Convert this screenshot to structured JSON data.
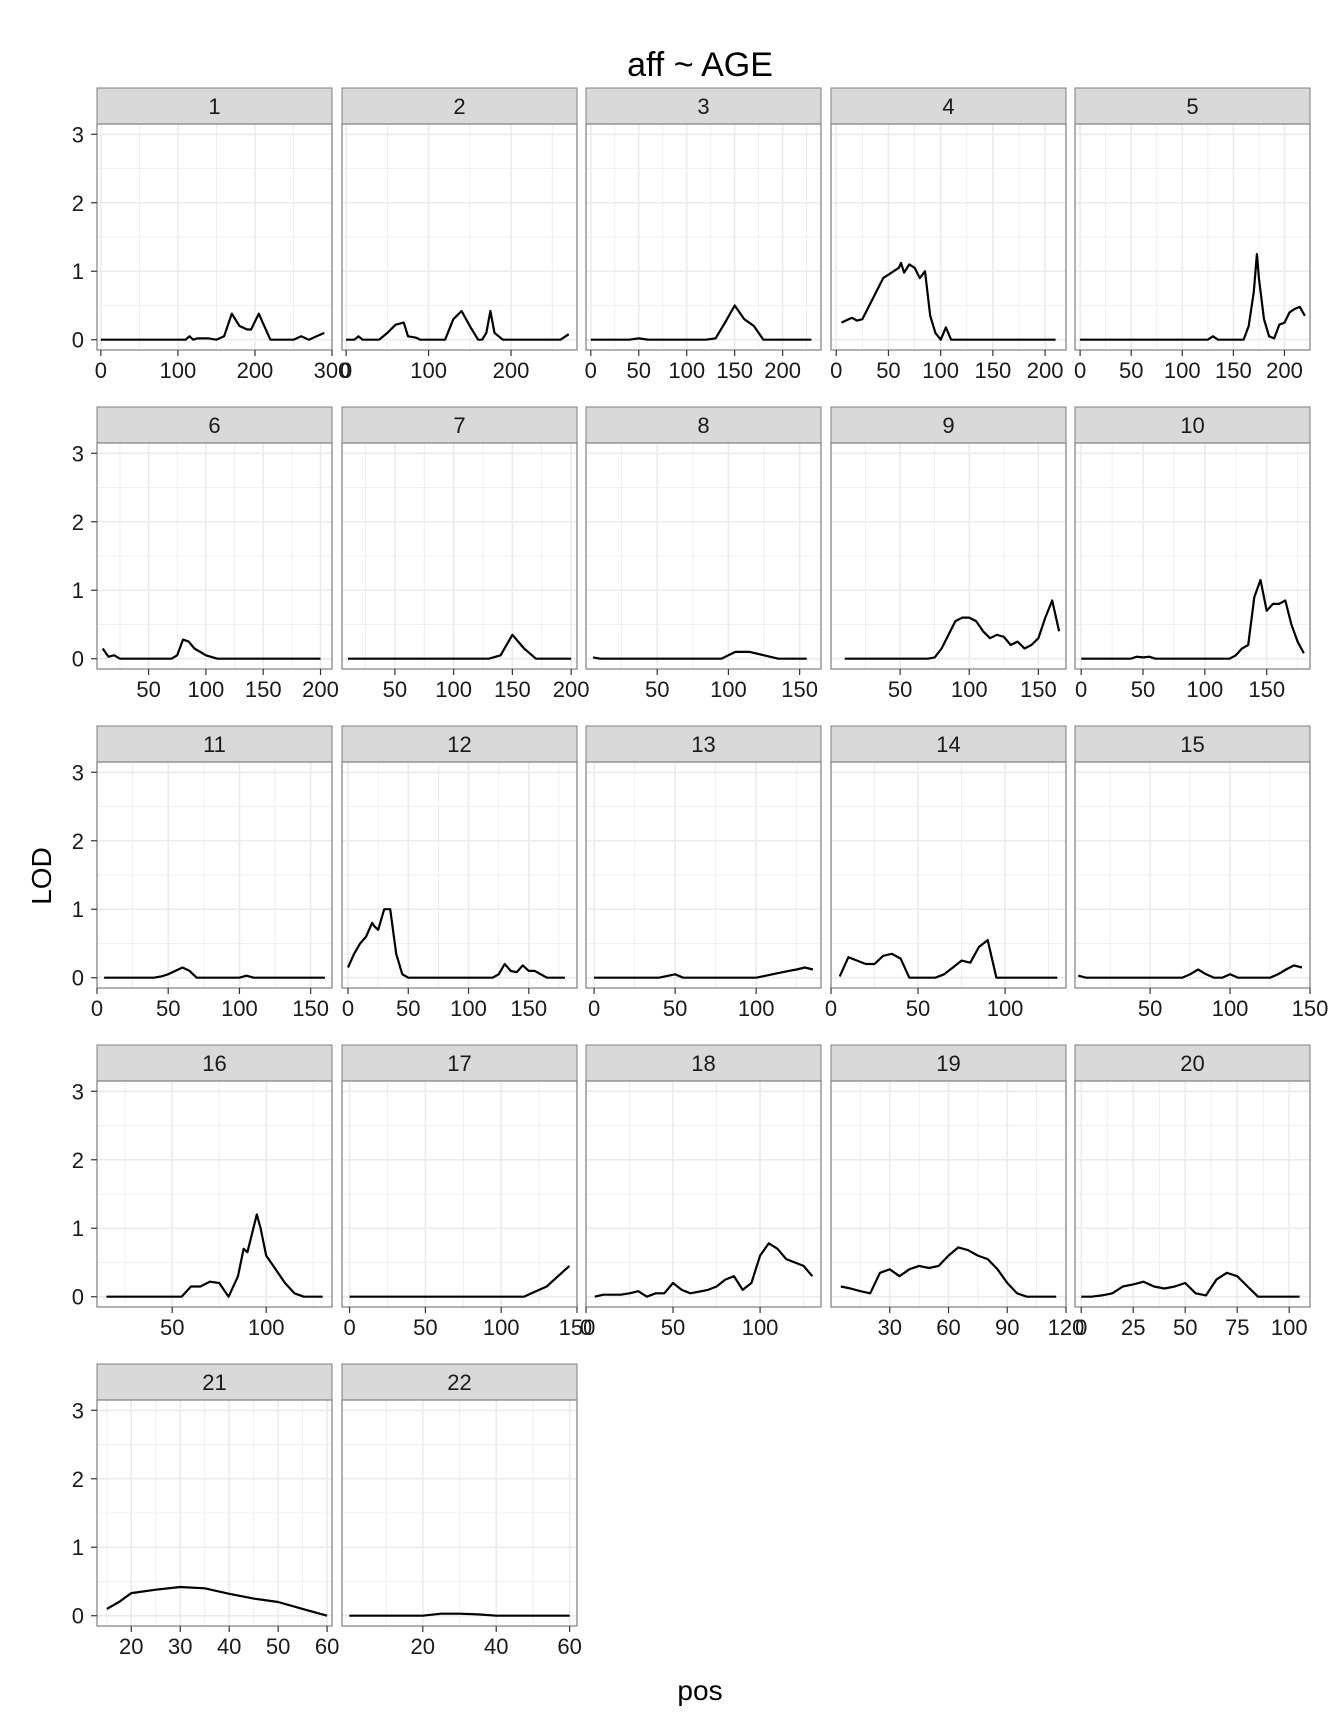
{
  "chart_data": {
    "type": "line",
    "title": "aff ~ AGE",
    "xlabel": "pos",
    "ylabel": "LOD",
    "ylim": [
      -0.15,
      3.15
    ],
    "yticks": [
      0,
      1,
      2,
      3
    ],
    "grid": true,
    "facet_layout": "5 columns, 5 rows, shared y axis, free x axis",
    "colors": {
      "line": "#000000",
      "panel_bg": "#ffffff",
      "grid": "#ebebeb",
      "strip_bg": "#d9d9d9",
      "border": "#7f7f7f"
    },
    "panels": [
      {
        "label": "1",
        "xlim": [
          -5,
          300
        ],
        "xticks": [
          0,
          100,
          200,
          300
        ],
        "x": [
          0,
          110,
          115,
          120,
          125,
          140,
          150,
          160,
          170,
          180,
          190,
          195,
          205,
          210,
          220,
          230,
          250,
          260,
          270,
          280,
          290
        ],
        "y": [
          0,
          0,
          0.05,
          0,
          0.02,
          0.02,
          0,
          0.05,
          0.38,
          0.2,
          0.15,
          0.15,
          0.38,
          0.25,
          0,
          0,
          0,
          0.05,
          0,
          0.05,
          0.1
        ]
      },
      {
        "label": "2",
        "xlim": [
          -5,
          280
        ],
        "xticks": [
          0,
          100,
          200
        ],
        "x": [
          0,
          10,
          15,
          20,
          30,
          40,
          50,
          60,
          70,
          75,
          85,
          90,
          110,
          120,
          130,
          140,
          150,
          160,
          165,
          170,
          175,
          180,
          190,
          200,
          260,
          270
        ],
        "y": [
          0,
          0,
          0.05,
          0,
          0,
          0,
          0.1,
          0.22,
          0.25,
          0.05,
          0.03,
          0,
          0,
          0,
          0.3,
          0.42,
          0.2,
          0,
          0,
          0.1,
          0.42,
          0.1,
          0,
          0,
          0,
          0.08
        ]
      },
      {
        "label": "3",
        "xlim": [
          -5,
          240
        ],
        "xticks": [
          0,
          50,
          100,
          150,
          200
        ],
        "x": [
          0,
          40,
          50,
          60,
          120,
          130,
          140,
          150,
          160,
          170,
          180,
          230
        ],
        "y": [
          0,
          0,
          0.02,
          0,
          0,
          0.02,
          0.25,
          0.5,
          0.3,
          0.2,
          0,
          0
        ]
      },
      {
        "label": "4",
        "xlim": [
          -5,
          220
        ],
        "xticks": [
          0,
          50,
          100,
          150,
          200
        ],
        "x": [
          5,
          15,
          20,
          25,
          35,
          45,
          50,
          55,
          60,
          62,
          65,
          70,
          75,
          80,
          85,
          90,
          95,
          100,
          105,
          110,
          120,
          210
        ],
        "y": [
          0.25,
          0.32,
          0.28,
          0.3,
          0.6,
          0.9,
          0.95,
          1.0,
          1.05,
          1.12,
          0.98,
          1.1,
          1.05,
          0.9,
          1.0,
          0.35,
          0.1,
          0,
          0.18,
          0,
          0,
          0
        ]
      },
      {
        "label": "5",
        "xlim": [
          -5,
          225
        ],
        "xticks": [
          0,
          50,
          100,
          150,
          200
        ],
        "x": [
          0,
          125,
          130,
          135,
          160,
          165,
          170,
          173,
          175,
          180,
          185,
          190,
          195,
          200,
          205,
          210,
          215,
          220
        ],
        "y": [
          0,
          0,
          0.05,
          0,
          0,
          0.2,
          0.7,
          1.25,
          0.9,
          0.3,
          0.05,
          0.02,
          0.22,
          0.25,
          0.4,
          0.45,
          0.48,
          0.35
        ]
      },
      {
        "label": "6",
        "xlim": [
          5,
          210
        ],
        "xticks": [
          50,
          100,
          150,
          200
        ],
        "x": [
          10,
          15,
          20,
          25,
          30,
          60,
          70,
          75,
          80,
          85,
          90,
          100,
          110,
          120,
          200
        ],
        "y": [
          0.15,
          0.03,
          0.05,
          0,
          0,
          0,
          0,
          0.05,
          0.28,
          0.25,
          0.15,
          0.05,
          0,
          0,
          0
        ]
      },
      {
        "label": "7",
        "xlim": [
          5,
          205
        ],
        "xticks": [
          50,
          100,
          150,
          200
        ],
        "x": [
          10,
          130,
          140,
          150,
          160,
          170,
          200
        ],
        "y": [
          0,
          0,
          0.05,
          0.35,
          0.15,
          0,
          0
        ]
      },
      {
        "label": "8",
        "xlim": [
          0,
          165
        ],
        "xticks": [
          50,
          100,
          150
        ],
        "x": [
          5,
          10,
          95,
          100,
          105,
          115,
          125,
          135,
          145,
          155
        ],
        "y": [
          0.02,
          0,
          0,
          0.05,
          0.1,
          0.1,
          0.05,
          0,
          0,
          0
        ]
      },
      {
        "label": "9",
        "xlim": [
          0,
          170
        ],
        "xticks": [
          50,
          100,
          150
        ],
        "x": [
          10,
          70,
          75,
          80,
          85,
          90,
          95,
          100,
          105,
          110,
          115,
          120,
          125,
          130,
          135,
          140,
          145,
          150,
          155,
          160,
          165
        ],
        "y": [
          0,
          0,
          0.02,
          0.15,
          0.35,
          0.55,
          0.6,
          0.6,
          0.55,
          0.4,
          0.3,
          0.35,
          0.32,
          0.2,
          0.25,
          0.15,
          0.2,
          0.3,
          0.6,
          0.85,
          0.4
        ]
      },
      {
        "label": "10",
        "xlim": [
          -5,
          185
        ],
        "xticks": [
          0,
          50,
          100,
          150
        ],
        "x": [
          0,
          40,
          45,
          50,
          55,
          60,
          65,
          120,
          125,
          130,
          135,
          140,
          145,
          150,
          155,
          160,
          165,
          170,
          175,
          180
        ],
        "y": [
          0,
          0,
          0.03,
          0.02,
          0.03,
          0,
          0,
          0,
          0.05,
          0.15,
          0.2,
          0.9,
          1.15,
          0.7,
          0.8,
          0.8,
          0.85,
          0.5,
          0.25,
          0.08
        ]
      },
      {
        "label": "11",
        "xlim": [
          0,
          165
        ],
        "xticks": [
          0,
          50,
          100,
          150
        ],
        "x": [
          5,
          40,
          45,
          50,
          55,
          60,
          65,
          70,
          75,
          100,
          105,
          110,
          115,
          160
        ],
        "y": [
          0,
          0,
          0.02,
          0.05,
          0.1,
          0.15,
          0.1,
          0,
          0,
          0,
          0.03,
          0,
          0,
          0
        ]
      },
      {
        "label": "12",
        "xlim": [
          -5,
          190
        ],
        "xticks": [
          0,
          50,
          100,
          150
        ],
        "x": [
          0,
          5,
          10,
          15,
          20,
          22,
          25,
          30,
          35,
          40,
          45,
          50,
          120,
          125,
          130,
          135,
          140,
          145,
          150,
          155,
          160,
          165,
          170,
          180
        ],
        "y": [
          0.15,
          0.35,
          0.5,
          0.6,
          0.8,
          0.75,
          0.7,
          1.0,
          1.0,
          0.35,
          0.05,
          0,
          0,
          0.05,
          0.2,
          0.1,
          0.08,
          0.18,
          0.1,
          0.1,
          0.05,
          0,
          0,
          0
        ]
      },
      {
        "label": "13",
        "xlim": [
          -5,
          140
        ],
        "xticks": [
          0,
          50,
          100
        ],
        "x": [
          0,
          40,
          50,
          55,
          100,
          110,
          120,
          125,
          130,
          135
        ],
        "y": [
          0,
          0,
          0.05,
          0,
          0,
          0.05,
          0.1,
          0.12,
          0.15,
          0.12
        ]
      },
      {
        "label": "14",
        "xlim": [
          0,
          135
        ],
        "xticks": [
          0,
          50,
          100
        ],
        "x": [
          5,
          10,
          15,
          20,
          25,
          30,
          35,
          40,
          45,
          60,
          65,
          70,
          75,
          80,
          85,
          90,
          95,
          100,
          130
        ],
        "y": [
          0.02,
          0.3,
          0.25,
          0.2,
          0.2,
          0.32,
          0.35,
          0.28,
          0,
          0,
          0.05,
          0.15,
          0.25,
          0.22,
          0.45,
          0.55,
          0,
          0,
          0
        ]
      },
      {
        "label": "15",
        "xlim": [
          3,
          150
        ],
        "xticks": [
          50,
          100,
          150
        ],
        "x": [
          5,
          10,
          70,
          75,
          80,
          85,
          90,
          95,
          100,
          105,
          110,
          125,
          130,
          135,
          140,
          145
        ],
        "y": [
          0.03,
          0,
          0,
          0.05,
          0.12,
          0.05,
          0,
          0,
          0.05,
          0,
          0,
          0,
          0.05,
          0.12,
          0.18,
          0.15
        ]
      },
      {
        "label": "16",
        "xlim": [
          10,
          135
        ],
        "xticks": [
          50,
          100
        ],
        "x": [
          15,
          55,
          60,
          65,
          70,
          75,
          80,
          85,
          88,
          90,
          95,
          97,
          100,
          105,
          110,
          115,
          120,
          130
        ],
        "y": [
          0,
          0,
          0.15,
          0.15,
          0.22,
          0.2,
          0,
          0.3,
          0.7,
          0.65,
          1.2,
          1.0,
          0.6,
          0.4,
          0.2,
          0.05,
          0,
          0
        ]
      },
      {
        "label": "17",
        "xlim": [
          -5,
          150
        ],
        "xticks": [
          0,
          50,
          100,
          150
        ],
        "x": [
          0,
          115,
          120,
          130,
          135,
          140,
          145
        ],
        "y": [
          0,
          0,
          0.05,
          0.15,
          0.25,
          0.35,
          0.45
        ]
      },
      {
        "label": "18",
        "xlim": [
          0,
          135
        ],
        "xticks": [
          0,
          50,
          100
        ],
        "x": [
          5,
          10,
          20,
          25,
          30,
          35,
          40,
          45,
          50,
          55,
          60,
          70,
          75,
          80,
          85,
          90,
          95,
          100,
          105,
          110,
          115,
          120,
          125,
          130
        ],
        "y": [
          0,
          0.03,
          0.03,
          0.05,
          0.08,
          0,
          0.05,
          0.05,
          0.2,
          0.1,
          0.05,
          0.1,
          0.15,
          0.25,
          0.3,
          0.1,
          0.2,
          0.6,
          0.78,
          0.7,
          0.55,
          0.5,
          0.45,
          0.3
        ]
      },
      {
        "label": "19",
        "xlim": [
          0,
          120
        ],
        "xticks": [
          30,
          60,
          90,
          120
        ],
        "x": [
          5,
          10,
          15,
          20,
          25,
          30,
          35,
          40,
          45,
          50,
          55,
          60,
          65,
          70,
          75,
          80,
          85,
          90,
          95,
          100,
          105,
          110,
          115
        ],
        "y": [
          0.15,
          0.12,
          0.08,
          0.05,
          0.35,
          0.4,
          0.3,
          0.4,
          0.45,
          0.42,
          0.45,
          0.6,
          0.72,
          0.68,
          0.6,
          0.55,
          0.4,
          0.2,
          0.05,
          0,
          0,
          0,
          0
        ]
      },
      {
        "label": "20",
        "xlim": [
          -3,
          110
        ],
        "xticks": [
          0,
          25,
          50,
          75,
          100
        ],
        "x": [
          0,
          5,
          10,
          15,
          20,
          25,
          30,
          35,
          40,
          45,
          50,
          55,
          60,
          65,
          70,
          75,
          80,
          85,
          100,
          105
        ],
        "y": [
          0,
          0,
          0.02,
          0.05,
          0.15,
          0.18,
          0.22,
          0.15,
          0.12,
          0.15,
          0.2,
          0.05,
          0.02,
          0.25,
          0.35,
          0.3,
          0.15,
          0,
          0,
          0
        ]
      },
      {
        "label": "21",
        "xlim": [
          13,
          61
        ],
        "xticks": [
          20,
          30,
          40,
          50,
          60
        ],
        "x": [
          15,
          17.5,
          20,
          25,
          30,
          35,
          40,
          45,
          50,
          55,
          60
        ],
        "y": [
          0.1,
          0.2,
          0.33,
          0.38,
          0.42,
          0.4,
          0.32,
          0.25,
          0.2,
          0.1,
          0
        ]
      },
      {
        "label": "22",
        "xlim": [
          -2,
          62
        ],
        "xticks": [
          20,
          40,
          60
        ],
        "x": [
          0,
          20,
          25,
          30,
          35,
          40,
          60
        ],
        "y": [
          0,
          0,
          0.03,
          0.03,
          0.02,
          0,
          0
        ]
      }
    ]
  }
}
